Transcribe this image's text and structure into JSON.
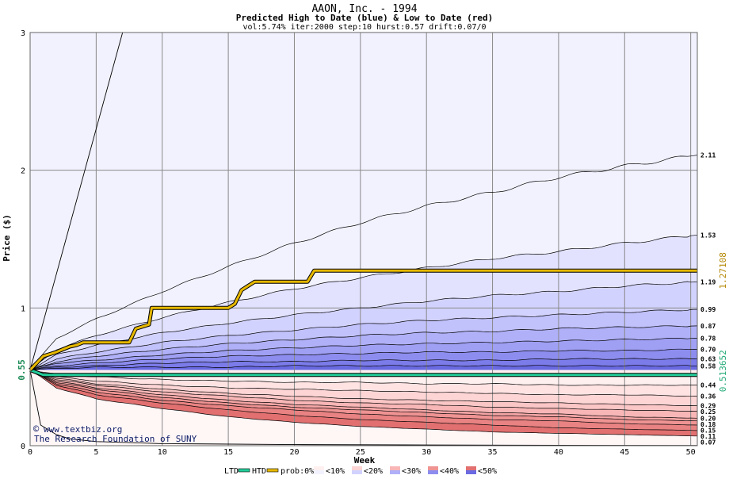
{
  "chart_data": {
    "type": "area",
    "title": "AAON, Inc. - 1994",
    "subtitle": "Predicted High to Date (blue) &  Low to Date (red)",
    "params": "vol:5.74% iter:2000 step:10 hurst:0.57 drift:0.07/0",
    "xlabel": "Week",
    "ylabel": "Price ($)",
    "xlim": [
      0,
      50.5
    ],
    "ylim": [
      0,
      3
    ],
    "x_ticks": [
      0,
      5,
      10,
      15,
      20,
      25,
      30,
      35,
      40,
      45,
      50
    ],
    "y_ticks": [
      0,
      1,
      2,
      3
    ],
    "grid": true,
    "start_price": 0.55,
    "start_label": "0.55",
    "high_marker_label": "1.27108",
    "low_marker_label": "0.513652",
    "upper_bands": [
      {
        "end_value": 2.11,
        "label": "2.11",
        "weeks": [
          0,
          2,
          5,
          10,
          15,
          20,
          25,
          30,
          35,
          40,
          45,
          50.5
        ],
        "values": [
          0.55,
          0.78,
          0.92,
          1.12,
          1.3,
          1.47,
          1.62,
          1.74,
          1.84,
          1.95,
          2.03,
          2.11
        ]
      },
      {
        "end_value": 1.53,
        "label": "1.53",
        "weeks": [
          0,
          2,
          5,
          10,
          15,
          20,
          25,
          30,
          35,
          40,
          45,
          50.5
        ],
        "values": [
          0.55,
          0.7,
          0.8,
          0.93,
          1.04,
          1.14,
          1.22,
          1.29,
          1.36,
          1.41,
          1.47,
          1.53
        ]
      },
      {
        "end_value": 1.19,
        "label": "1.19",
        "weeks": [
          0,
          2,
          5,
          10,
          15,
          20,
          25,
          30,
          35,
          40,
          45,
          50.5
        ],
        "values": [
          0.55,
          0.66,
          0.73,
          0.82,
          0.89,
          0.95,
          1.0,
          1.05,
          1.09,
          1.12,
          1.16,
          1.19
        ]
      },
      {
        "end_value": 0.99,
        "label": "0.99",
        "weeks": [
          0,
          2,
          5,
          10,
          15,
          20,
          25,
          30,
          35,
          40,
          45,
          50.5
        ],
        "values": [
          0.55,
          0.63,
          0.68,
          0.75,
          0.8,
          0.84,
          0.88,
          0.91,
          0.93,
          0.95,
          0.97,
          0.99
        ]
      },
      {
        "end_value": 0.87,
        "label": "0.87",
        "weeks": [
          0,
          2,
          5,
          10,
          15,
          20,
          25,
          30,
          35,
          40,
          45,
          50.5
        ],
        "values": [
          0.55,
          0.61,
          0.65,
          0.7,
          0.74,
          0.77,
          0.8,
          0.82,
          0.83,
          0.85,
          0.86,
          0.87
        ]
      },
      {
        "end_value": 0.78,
        "label": "0.78",
        "weeks": [
          0,
          2,
          5,
          10,
          15,
          20,
          25,
          30,
          35,
          40,
          45,
          50.5
        ],
        "values": [
          0.55,
          0.6,
          0.62,
          0.66,
          0.69,
          0.71,
          0.73,
          0.74,
          0.75,
          0.76,
          0.77,
          0.78
        ]
      },
      {
        "end_value": 0.7,
        "label": "0.70",
        "weeks": [
          0,
          2,
          5,
          10,
          15,
          20,
          25,
          30,
          35,
          40,
          45,
          50.5
        ],
        "values": [
          0.55,
          0.58,
          0.6,
          0.63,
          0.65,
          0.66,
          0.67,
          0.68,
          0.68,
          0.69,
          0.69,
          0.7
        ]
      },
      {
        "end_value": 0.63,
        "label": "0.63",
        "weeks": [
          0,
          2,
          5,
          10,
          15,
          20,
          25,
          30,
          35,
          40,
          45,
          50.5
        ],
        "values": [
          0.55,
          0.57,
          0.58,
          0.6,
          0.61,
          0.61,
          0.62,
          0.62,
          0.62,
          0.63,
          0.63,
          0.63
        ]
      },
      {
        "end_value": 0.58,
        "label": "0.58",
        "weeks": [
          0,
          2,
          5,
          10,
          15,
          20,
          25,
          30,
          35,
          40,
          45,
          50.5
        ],
        "values": [
          0.55,
          0.56,
          0.57,
          0.57,
          0.57,
          0.58,
          0.58,
          0.58,
          0.58,
          0.58,
          0.58,
          0.58
        ]
      }
    ],
    "lower_bands": [
      {
        "end_value": 0.44,
        "label": "0.44",
        "weeks": [
          0,
          2,
          5,
          10,
          15,
          20,
          25,
          30,
          35,
          40,
          45,
          50.5
        ],
        "values": [
          0.55,
          0.52,
          0.5,
          0.48,
          0.47,
          0.46,
          0.46,
          0.45,
          0.45,
          0.44,
          0.44,
          0.44
        ]
      },
      {
        "end_value": 0.36,
        "label": "0.36",
        "weeks": [
          0,
          2,
          5,
          10,
          15,
          20,
          25,
          30,
          35,
          40,
          45,
          50.5
        ],
        "values": [
          0.55,
          0.5,
          0.47,
          0.44,
          0.42,
          0.41,
          0.4,
          0.39,
          0.38,
          0.37,
          0.37,
          0.36
        ]
      },
      {
        "end_value": 0.29,
        "label": "0.29",
        "weeks": [
          0,
          2,
          5,
          10,
          15,
          20,
          25,
          30,
          35,
          40,
          45,
          50.5
        ],
        "values": [
          0.55,
          0.49,
          0.45,
          0.41,
          0.38,
          0.36,
          0.34,
          0.33,
          0.32,
          0.31,
          0.3,
          0.29
        ]
      },
      {
        "end_value": 0.25,
        "label": "0.25",
        "weeks": [
          0,
          2,
          5,
          10,
          15,
          20,
          25,
          30,
          35,
          40,
          45,
          50.5
        ],
        "values": [
          0.55,
          0.48,
          0.44,
          0.39,
          0.36,
          0.33,
          0.31,
          0.3,
          0.28,
          0.27,
          0.26,
          0.25
        ]
      },
      {
        "end_value": 0.2,
        "label": "0.20",
        "weeks": [
          0,
          2,
          5,
          10,
          15,
          20,
          25,
          30,
          35,
          40,
          45,
          50.5
        ],
        "values": [
          0.55,
          0.47,
          0.42,
          0.37,
          0.33,
          0.3,
          0.28,
          0.26,
          0.24,
          0.23,
          0.21,
          0.2
        ]
      },
      {
        "end_value": 0.18,
        "label": "0.18",
        "weeks": [
          0,
          2,
          5,
          10,
          15,
          20,
          25,
          30,
          35,
          40,
          45,
          50.5
        ],
        "values": [
          0.55,
          0.46,
          0.41,
          0.35,
          0.31,
          0.28,
          0.26,
          0.24,
          0.22,
          0.21,
          0.19,
          0.18
        ]
      },
      {
        "end_value": 0.15,
        "label": "0.15",
        "weeks": [
          0,
          2,
          5,
          10,
          15,
          20,
          25,
          30,
          35,
          40,
          45,
          50.5
        ],
        "values": [
          0.55,
          0.45,
          0.39,
          0.33,
          0.29,
          0.26,
          0.23,
          0.21,
          0.19,
          0.18,
          0.16,
          0.15
        ]
      },
      {
        "end_value": 0.11,
        "label": "0.11",
        "weeks": [
          0,
          2,
          5,
          10,
          15,
          20,
          25,
          30,
          35,
          40,
          45,
          50.5
        ],
        "values": [
          0.55,
          0.44,
          0.37,
          0.31,
          0.26,
          0.22,
          0.19,
          0.17,
          0.15,
          0.13,
          0.12,
          0.11
        ]
      },
      {
        "end_value": 0.07,
        "label": "0.07",
        "weeks": [
          0,
          2,
          5,
          10,
          15,
          20,
          25,
          30,
          35,
          40,
          45,
          50.5
        ],
        "values": [
          0.55,
          0.42,
          0.34,
          0.27,
          0.21,
          0.17,
          0.14,
          0.12,
          0.1,
          0.09,
          0.08,
          0.07
        ]
      }
    ],
    "max_line": {
      "weeks": [
        0,
        7
      ],
      "values": [
        0.55,
        3.0
      ]
    },
    "min_line": {
      "weeks": [
        0,
        0.8,
        2,
        3,
        5,
        10,
        20,
        30,
        40,
        50.5
      ],
      "values": [
        0.55,
        0.15,
        0.08,
        0.05,
        0.03,
        0.015,
        0.008,
        0.005,
        0.003,
        0.002
      ]
    },
    "high_to_date": {
      "weeks": [
        0,
        0.5,
        1,
        2,
        2.5,
        3,
        3.5,
        4,
        7.5,
        8,
        9,
        9.2,
        15,
        15.5,
        16,
        16.5,
        17,
        21,
        21.5,
        50.5
      ],
      "values": [
        0.55,
        0.6,
        0.65,
        0.68,
        0.7,
        0.72,
        0.73,
        0.75,
        0.75,
        0.85,
        0.88,
        1.0,
        1.0,
        1.03,
        1.13,
        1.16,
        1.19,
        1.19,
        1.27108,
        1.27108
      ]
    },
    "low_to_date": {
      "weeks": [
        0,
        1,
        50.5
      ],
      "values": [
        0.55,
        0.513652,
        0.513652
      ]
    },
    "legend": {
      "ltd": "LTD",
      "htd": "HTD",
      "prob_label": "prob:0%",
      "items": [
        "<10%",
        "<20%",
        "<30%",
        "<40%",
        "<50%"
      ]
    },
    "credit": {
      "site": "www.textbiz.org",
      "org": "The Research Foundation of SUNY"
    },
    "colors": {
      "blue_bands": [
        "#f2f2ff",
        "#e2e2ff",
        "#d2d2fe",
        "#c1c1fb",
        "#b0b0f8",
        "#9f9ff4",
        "#8d8def",
        "#7b7be9",
        "#6a6ae2"
      ],
      "red_bands": [
        "#fff0f0",
        "#ffe3e3",
        "#fdd5d5",
        "#fbc6c6",
        "#f8b6b6",
        "#f4a5a5",
        "#ef9393",
        "#e98282",
        "#e27070"
      ],
      "htd_line": "#e6b800",
      "ltd_line": "#22cc99",
      "high_marker": "#b38600",
      "low_marker": "#22aa77",
      "credit_text": "#0a1a66"
    }
  }
}
